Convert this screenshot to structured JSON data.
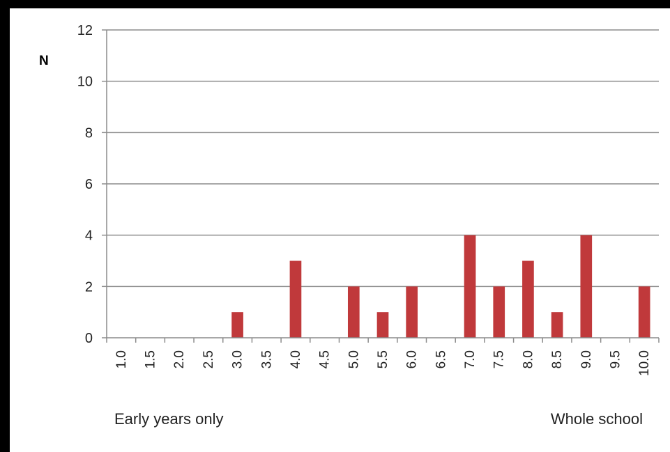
{
  "chart_data": {
    "type": "bar",
    "title": "",
    "xlabel": "",
    "ylabel": "N",
    "ylim": [
      0,
      12
    ],
    "yticks": [
      0,
      2,
      4,
      6,
      8,
      10,
      12
    ],
    "grid": true,
    "bar_color": "#C0393B",
    "categories": [
      "1.0",
      "1.5",
      "2.0",
      "2.5",
      "3.0",
      "3.5",
      "4.0",
      "4.5",
      "5.0",
      "5.5",
      "6.0",
      "6.5",
      "7.0",
      "7.5",
      "8.0",
      "8.5",
      "9.0",
      "9.5",
      "10.0"
    ],
    "values": [
      0,
      0,
      0,
      0,
      1,
      0,
      3,
      0,
      2,
      1,
      2,
      0,
      4,
      2,
      3,
      1,
      4,
      0,
      2
    ],
    "annotations": {
      "left": "Early years only",
      "right": "Whole school"
    }
  }
}
